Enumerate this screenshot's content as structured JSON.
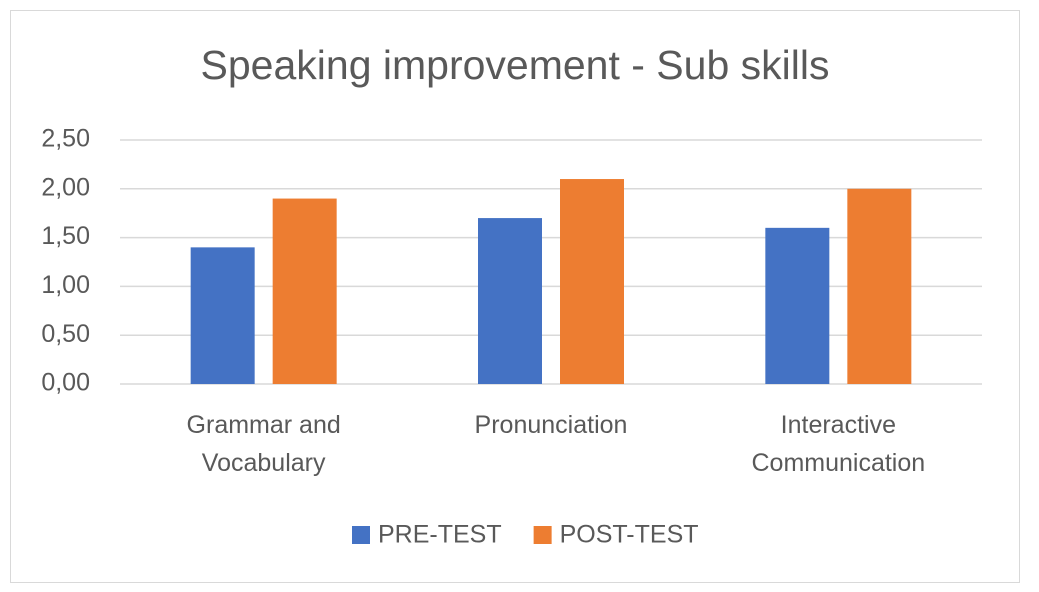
{
  "chart_data": {
    "type": "bar",
    "title": "Speaking improvement - Sub skills",
    "categories": [
      "Grammar and Vocabulary",
      "Pronunciation",
      "Interactive Communication"
    ],
    "series": [
      {
        "name": "PRE-TEST",
        "color": "#4472c4",
        "values": [
          1.4,
          1.7,
          1.6
        ]
      },
      {
        "name": "POST-TEST",
        "color": "#ed7d31",
        "values": [
          1.9,
          2.1,
          2.0
        ]
      }
    ],
    "ylim": [
      0,
      2.5
    ],
    "yticks": [
      {
        "value": 0,
        "label": "0,00"
      },
      {
        "value": 0.5,
        "label": "0,50"
      },
      {
        "value": 1,
        "label": "1,00"
      },
      {
        "value": 1.5,
        "label": "1,50"
      },
      {
        "value": 2,
        "label": "2,00"
      },
      {
        "value": 2.5,
        "label": "2,50"
      }
    ],
    "grid": true,
    "legend": "bottom"
  }
}
